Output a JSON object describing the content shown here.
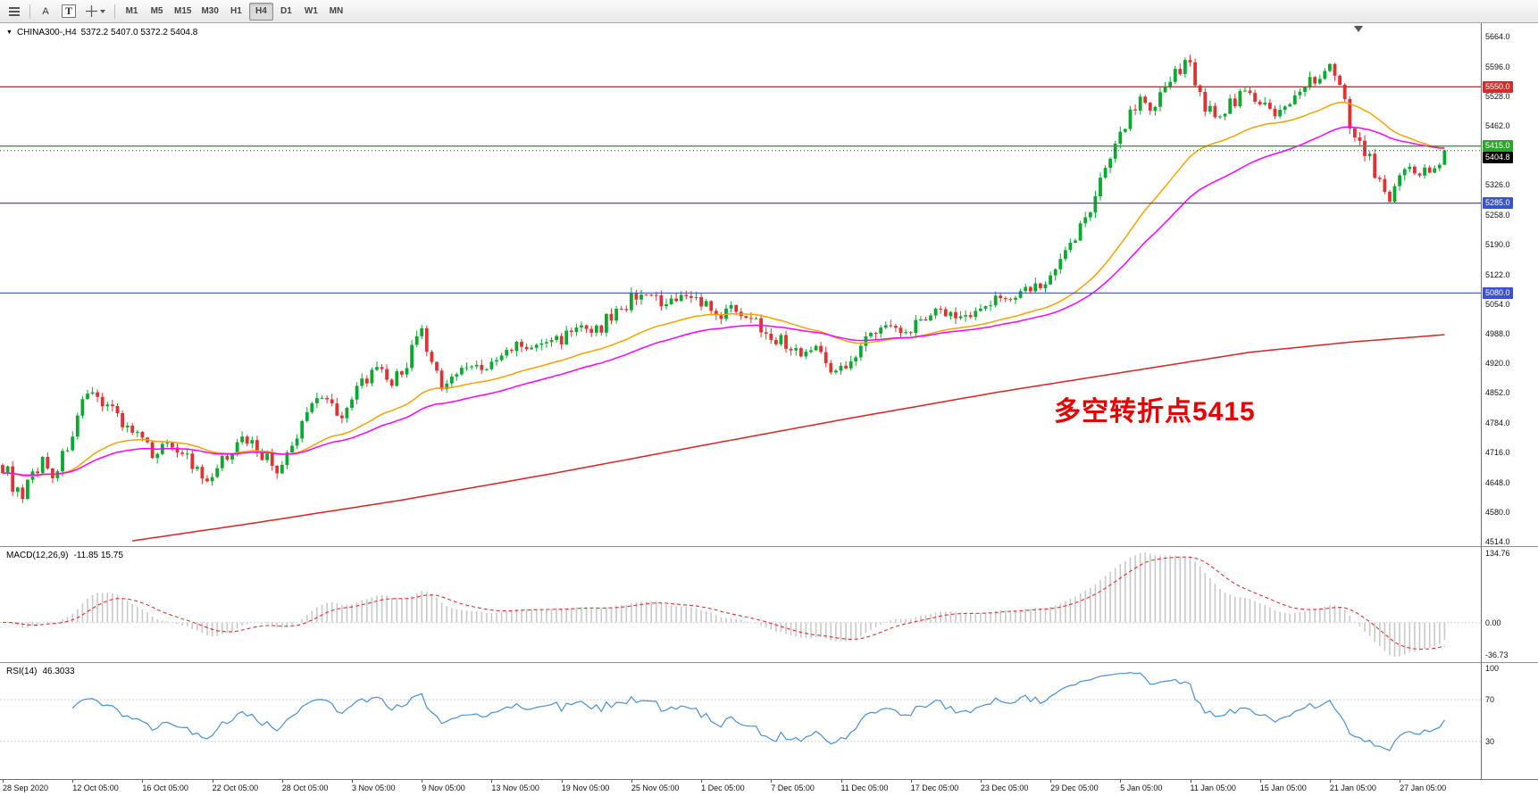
{
  "toolbar": {
    "arrow_label": "A",
    "text_label": "T",
    "timeframes": [
      "M1",
      "M5",
      "M15",
      "M30",
      "H1",
      "H4",
      "D1",
      "W1",
      "MN"
    ],
    "active_timeframe": "H4"
  },
  "chart": {
    "symbol_label": "CHINA300-,H4",
    "ohlc": "5372.2 5407.0 5372.2 5404.8",
    "annotation": {
      "text": "多空转折点5415",
      "color": "#e60000"
    },
    "price_axis": [
      5664,
      5596,
      5528,
      5462,
      5394,
      5326,
      5258,
      5190,
      5122,
      5054,
      4988,
      4920,
      4852,
      4784,
      4716,
      4648,
      4580,
      4514
    ],
    "hline_labels": [
      {
        "text": "5550.0",
        "price": 5550,
        "bg": "#d62b2b",
        "fg": "#ffffff"
      },
      {
        "text": "5415.0",
        "price": 5415,
        "bg": "#2ea32e",
        "fg": "#ffffff"
      },
      {
        "text": "5404.8",
        "price": 5404.8,
        "bg": "#000000",
        "fg": "#ffffff"
      },
      {
        "text": "5285.0",
        "price": 5285,
        "bg": "#3a52cc",
        "fg": "#ffffff"
      },
      {
        "text": "5080.0",
        "price": 5080,
        "bg": "#3a52cc",
        "fg": "#ffffff"
      }
    ]
  },
  "macd": {
    "title": "MACD(12,26,9)",
    "values_text": "-11.85 15.75",
    "axis_labels": [
      "134.76",
      "0.00",
      "-36.73"
    ]
  },
  "rsi": {
    "title": "RSI(14)",
    "value_text": "46.3033",
    "axis_labels": [
      "100",
      "70",
      "30"
    ]
  },
  "chart_data": {
    "type": "candlestick",
    "symbol": "CHINA300-",
    "timeframe": "H4",
    "bars": 290,
    "ylim": [
      4503,
      5695
    ],
    "colors": {
      "up": "#0aa92f",
      "down": "#e03232",
      "macd_hist": "#c9c9c9",
      "macd_signal": "#e03030",
      "rsi_line": "#4a90d2"
    },
    "price_anchors": [
      [
        0,
        4688
      ],
      [
        2,
        4645
      ],
      [
        4,
        4605
      ],
      [
        6,
        4668
      ],
      [
        8,
        4702
      ],
      [
        10,
        4662
      ],
      [
        12,
        4705
      ],
      [
        14,
        4762
      ],
      [
        16,
        4820
      ],
      [
        18,
        4845
      ],
      [
        21,
        4832
      ],
      [
        24,
        4788
      ],
      [
        27,
        4752
      ],
      [
        30,
        4712
      ],
      [
        33,
        4738
      ],
      [
        36,
        4722
      ],
      [
        39,
        4668
      ],
      [
        41,
        4645
      ],
      [
        44,
        4692
      ],
      [
        47,
        4748
      ],
      [
        50,
        4742
      ],
      [
        53,
        4700
      ],
      [
        55,
        4672
      ],
      [
        58,
        4722
      ],
      [
        61,
        4812
      ],
      [
        63,
        4850
      ],
      [
        65,
        4838
      ],
      [
        68,
        4800
      ],
      [
        70,
        4828
      ],
      [
        72,
        4880
      ],
      [
        75,
        4905
      ],
      [
        78,
        4872
      ],
      [
        80,
        4902
      ],
      [
        83,
        4972
      ],
      [
        84,
        4988
      ],
      [
        86,
        4908
      ],
      [
        88,
        4870
      ],
      [
        91,
        4896
      ],
      [
        94,
        4918
      ],
      [
        97,
        4906
      ],
      [
        100,
        4932
      ],
      [
        103,
        4962
      ],
      [
        106,
        4950
      ],
      [
        109,
        4972
      ],
      [
        112,
        4976
      ],
      [
        115,
        5006
      ],
      [
        118,
        4986
      ],
      [
        121,
        5016
      ],
      [
        124,
        5046
      ],
      [
        127,
        5076
      ],
      [
        129,
        5084
      ],
      [
        132,
        5046
      ],
      [
        135,
        5062
      ],
      [
        138,
        5076
      ],
      [
        140,
        5060
      ],
      [
        143,
        5022
      ],
      [
        146,
        5046
      ],
      [
        149,
        5032
      ],
      [
        152,
        5002
      ],
      [
        154,
        4988
      ],
      [
        157,
        4962
      ],
      [
        160,
        4942
      ],
      [
        163,
        4955
      ],
      [
        165,
        4938
      ],
      [
        167,
        4895
      ],
      [
        169,
        4922
      ],
      [
        172,
        4962
      ],
      [
        175,
        4992
      ],
      [
        178,
        5006
      ],
      [
        180,
        4996
      ],
      [
        182,
        5002
      ],
      [
        185,
        5030
      ],
      [
        188,
        5042
      ],
      [
        191,
        5026
      ],
      [
        194,
        5032
      ],
      [
        196,
        5040
      ],
      [
        199,
        5062
      ],
      [
        202,
        5076
      ],
      [
        205,
        5090
      ],
      [
        208,
        5096
      ],
      [
        210,
        5106
      ],
      [
        212,
        5142
      ],
      [
        214,
        5186
      ],
      [
        216,
        5232
      ],
      [
        218,
        5282
      ],
      [
        220,
        5332
      ],
      [
        222,
        5392
      ],
      [
        224,
        5452
      ],
      [
        226,
        5492
      ],
      [
        228,
        5532
      ],
      [
        230,
        5496
      ],
      [
        232,
        5546
      ],
      [
        234,
        5562
      ],
      [
        236,
        5592
      ],
      [
        237,
        5616
      ],
      [
        239,
        5572
      ],
      [
        241,
        5512
      ],
      [
        243,
        5478
      ],
      [
        245,
        5496
      ],
      [
        247,
        5522
      ],
      [
        249,
        5546
      ],
      [
        251,
        5512
      ],
      [
        253,
        5522
      ],
      [
        255,
        5482
      ],
      [
        257,
        5502
      ],
      [
        259,
        5522
      ],
      [
        261,
        5546
      ],
      [
        263,
        5562
      ],
      [
        265,
        5586
      ],
      [
        266,
        5592
      ],
      [
        268,
        5546
      ],
      [
        270,
        5472
      ],
      [
        271,
        5436
      ],
      [
        273,
        5402
      ],
      [
        275,
        5356
      ],
      [
        277,
        5324
      ],
      [
        278,
        5292
      ],
      [
        280,
        5336
      ],
      [
        282,
        5362
      ],
      [
        284,
        5348
      ],
      [
        286,
        5368
      ],
      [
        288,
        5372.2
      ],
      [
        289,
        5404.8
      ]
    ],
    "last_candle": {
      "open": 5372.2,
      "high": 5407.0,
      "low": 5372.2,
      "close": 5404.8
    },
    "hlines": [
      {
        "price": 5550,
        "color": "#d62b2b",
        "width": 1.4
      },
      {
        "price": 5415,
        "color": "#2ea32e",
        "width": 1.4
      },
      {
        "price": 5285,
        "color": "#3a52cc",
        "width": 1.2
      },
      {
        "price": 5080,
        "color": "#3a52cc",
        "width": 1.2
      }
    ],
    "current_price": 5404.8,
    "moving_averages": [
      {
        "name": "fast",
        "type": "ema",
        "period": 34,
        "color": "#f5a300"
      },
      {
        "name": "medium",
        "type": "ema",
        "period": 55,
        "color": "#ff00ff"
      },
      {
        "name": "slow",
        "type": "anchored",
        "color": "#dd2222",
        "anchors": [
          [
            26,
            4515
          ],
          [
            50,
            4555
          ],
          [
            80,
            4608
          ],
          [
            110,
            4668
          ],
          [
            140,
            4732
          ],
          [
            170,
            4795
          ],
          [
            200,
            4855
          ],
          [
            225,
            4900
          ],
          [
            250,
            4945
          ],
          [
            270,
            4968
          ],
          [
            289,
            4985
          ]
        ]
      }
    ],
    "indicators": {
      "macd": {
        "fast": 12,
        "slow": 26,
        "signal": 9,
        "macd_value": -11.85,
        "signal_value": 15.75,
        "range": [
          -36.73,
          134.76
        ]
      },
      "rsi": {
        "period": 14,
        "value": 46.3033,
        "levels": [
          70,
          30
        ],
        "range": [
          0,
          100
        ]
      }
    },
    "x_labels": [
      "28 Sep 2020",
      "12 Oct 05:00",
      "16 Oct 05:00",
      "22 Oct 05:00",
      "28 Oct 05:00",
      "3 Nov 05:00",
      "9 Nov 05:00",
      "13 Nov 05:00",
      "19 Nov 05:00",
      "25 Nov 05:00",
      "1 Dec 05:00",
      "7 Dec 05:00",
      "11 Dec 05:00",
      "17 Dec 05:00",
      "23 Dec 05:00",
      "29 Dec 05:00",
      "5 Jan 05:00",
      "11 Jan 05:00",
      "15 Jan 05:00",
      "21 Jan 05:00",
      "27 Jan 05:00"
    ],
    "x_label_step_bars": 14
  }
}
